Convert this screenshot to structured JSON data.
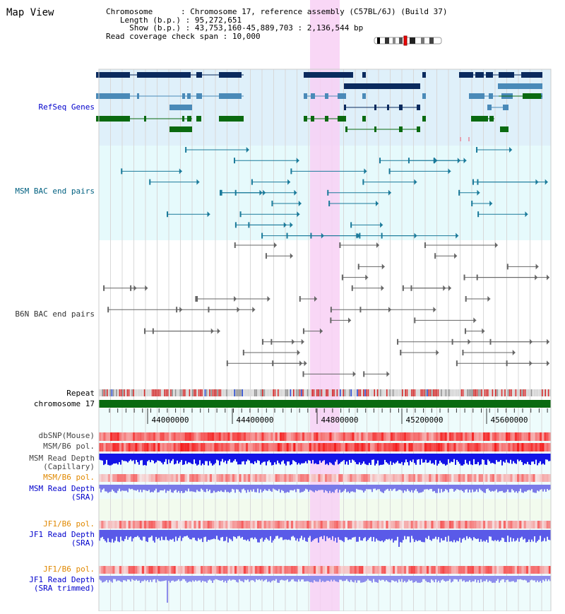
{
  "title": "Map View",
  "info": {
    "chromosome_label": "Chromosome",
    "chromosome_value": "Chromosome 17, reference assembly (C57BL/6J) (Build 37)",
    "length_label": "Length (b.p.)",
    "length_value": "95,272,651",
    "show_label": "Show (b.p.)",
    "show_value": "43,753,160-45,889,703 : 2,136,544 bp",
    "coverage_label": "Read coverage check span",
    "coverage_value": "10,000"
  },
  "tracks": {
    "refseq": "RefSeq Genes",
    "msm_bac": "MSM BAC end pairs",
    "b6n_bac": "B6N BAC end pairs",
    "repeat": "Repeat",
    "chromosome": "chromosome 17",
    "dbsnp": "dbSNP(Mouse)",
    "msm_b6_pol_1": "MSM/B6 pol.",
    "msm_depth_cap_1": "MSM Read Depth",
    "msm_depth_cap_2": "(Capillary)",
    "msm_b6_pol_2": "MSM/B6 pol.",
    "msm_depth_sra_1": "MSM Read Depth",
    "msm_depth_sra_2": "(SRA)",
    "jf1_b6_pol_1": "JF1/B6 pol.",
    "jf1_depth_sra_1": "JF1 Read Depth",
    "jf1_depth_sra_2": "(SRA)",
    "jf1_b6_pol_2": "JF1/B6 pol.",
    "jf1_depth_trim_1": "JF1 Read Depth",
    "jf1_depth_trim_2": "(SRA trimmed)"
  },
  "axis": {
    "ticks": [
      "44000000",
      "44400000",
      "44800000",
      "45200000",
      "45600000"
    ]
  },
  "colors": {
    "label_blue": "#0000cc",
    "label_teal": "#006080",
    "label_orange": "#e08800",
    "gene_dark": "#0a2a5e",
    "gene_light": "#4a8ab8",
    "gene_green": "#0a6a10",
    "highlight": "#f8d0f4",
    "depth_blue": "#1010e0"
  }
}
